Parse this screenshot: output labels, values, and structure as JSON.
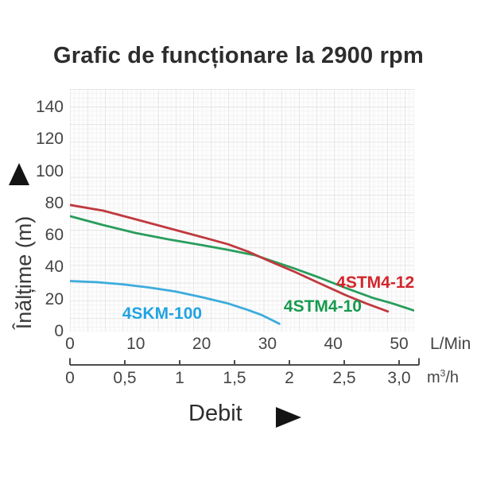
{
  "title": "Grafic de funcționare la 2900 rpm",
  "y_axis": {
    "label": "Înălțime (m)",
    "ticks": [
      140,
      120,
      100,
      80,
      60,
      40,
      20,
      0
    ]
  },
  "x_axis_lmin": {
    "unit": "L/Min",
    "ticks": [
      0,
      10,
      20,
      30,
      40,
      50
    ]
  },
  "x_axis_m3h": {
    "unit_prefix": "m",
    "unit_sup": "3",
    "unit_suffix": "/h",
    "tick_labels": [
      "0",
      "0,5",
      "1",
      "1,5",
      "2",
      "2,5",
      "3,0"
    ],
    "tick_values": [
      0,
      0.5,
      1,
      1.5,
      2,
      2.5,
      3
    ]
  },
  "flow_label": "Debit",
  "colors": {
    "red_curve": "#c0393f",
    "red_label": "#d2262c",
    "green_curve": "#2a9d5c",
    "green_label": "#169a4e",
    "blue_curve": "#3cacdc",
    "blue_label": "#22a3e2",
    "grid_minor": "#ebebeb",
    "grid_major": "#dcdcdc",
    "axis_text": "#454545"
  },
  "chart_data": {
    "type": "line",
    "title": "Grafic de funcționare la 2900 rpm",
    "xlabel": "Debit",
    "ylabel": "Înălțime (m)",
    "x_units": [
      "L/Min",
      "m3/h"
    ],
    "xlim_lmin": [
      0,
      52.3
    ],
    "ylim": [
      0,
      151
    ],
    "grid": true,
    "legend_position": "inline-labels",
    "x_ticks_lmin": [
      0,
      10,
      20,
      30,
      40,
      50
    ],
    "x_ticks_m3h": [
      0,
      0.5,
      1,
      1.5,
      2,
      2.5,
      3.0
    ],
    "y_ticks": [
      0,
      20,
      40,
      60,
      80,
      100,
      120,
      140
    ],
    "series": [
      {
        "name": "4SKM-100",
        "color": "#3cacdc",
        "label_color": "#22a3e2",
        "label_at": [
          14,
          11
        ],
        "points": [
          [
            0,
            31.5
          ],
          [
            4,
            30.8
          ],
          [
            8,
            29.5
          ],
          [
            12,
            27.5
          ],
          [
            16,
            25
          ],
          [
            20,
            21.5
          ],
          [
            24,
            17.5
          ],
          [
            27,
            13.5
          ],
          [
            29,
            10.5
          ],
          [
            31,
            6.5
          ],
          [
            31.8,
            4.8
          ]
        ]
      },
      {
        "name": "4STM4-10",
        "color": "#2a9d5c",
        "label_color": "#169a4e",
        "label_at": [
          38.4,
          15.4
        ],
        "points": [
          [
            0,
            72
          ],
          [
            5,
            66.5
          ],
          [
            10,
            61.5
          ],
          [
            15,
            57.5
          ],
          [
            20,
            54
          ],
          [
            24,
            51
          ],
          [
            27,
            48.5
          ],
          [
            28,
            47.8
          ],
          [
            30,
            45
          ],
          [
            34,
            39.5
          ],
          [
            38,
            33.5
          ],
          [
            42,
            27
          ],
          [
            46,
            21
          ],
          [
            49,
            17.5
          ],
          [
            52.2,
            13.2
          ]
        ]
      },
      {
        "name": "4STM4-12",
        "color": "#c0393f",
        "label_color": "#d2262c",
        "label_at": [
          46.4,
          30.3
        ],
        "points": [
          [
            0,
            79
          ],
          [
            5,
            75.5
          ],
          [
            10,
            70
          ],
          [
            15,
            64.5
          ],
          [
            20,
            59
          ],
          [
            24,
            54.5
          ],
          [
            27,
            50
          ],
          [
            28,
            48.2
          ],
          [
            30,
            44.5
          ],
          [
            34,
            37.5
          ],
          [
            38,
            30
          ],
          [
            42,
            22.5
          ],
          [
            45,
            17.5
          ],
          [
            48.3,
            12.5
          ]
        ]
      }
    ]
  }
}
